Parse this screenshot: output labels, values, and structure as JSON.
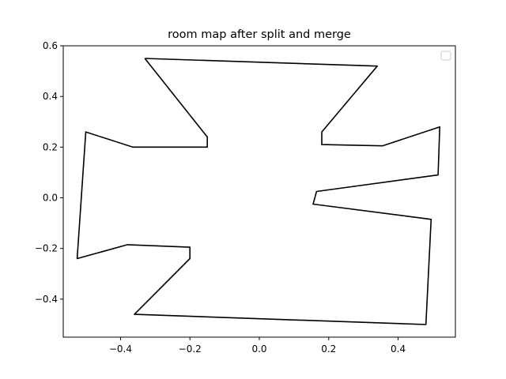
{
  "chart_data": {
    "type": "line",
    "title": "room map after split and merge",
    "xlabel": "",
    "ylabel": "",
    "xlim": [
      -0.565,
      0.565
    ],
    "ylim": [
      -0.55,
      0.6
    ],
    "xticks": [
      -0.4,
      -0.2,
      0.0,
      0.2,
      0.4
    ],
    "yticks": [
      -0.4,
      -0.2,
      0.0,
      0.2,
      0.4,
      0.6
    ],
    "xtick_labels": [
      "−0.4",
      "−0.2",
      "0.0",
      "0.2",
      "0.4"
    ],
    "ytick_labels": [
      "−0.4",
      "−0.2",
      "0.0",
      "0.2",
      "0.4",
      "0.6"
    ],
    "grid": false,
    "legend": {
      "placement": "top-right",
      "entries": []
    },
    "series": [
      {
        "color": "#000000",
        "x": [
          -0.33,
          0.34,
          0.18,
          0.18,
          0.355,
          0.52,
          0.515,
          0.165,
          0.155,
          0.495,
          0.48,
          -0.36,
          -0.2,
          -0.2,
          -0.38,
          -0.525,
          -0.5,
          -0.365,
          -0.15,
          -0.15,
          -0.33
        ],
        "y": [
          0.55,
          0.52,
          0.26,
          0.21,
          0.205,
          0.28,
          0.09,
          0.025,
          -0.025,
          -0.085,
          -0.5,
          -0.46,
          -0.24,
          -0.195,
          -0.185,
          -0.24,
          0.26,
          0.2,
          0.2,
          0.24,
          0.55
        ]
      }
    ]
  }
}
